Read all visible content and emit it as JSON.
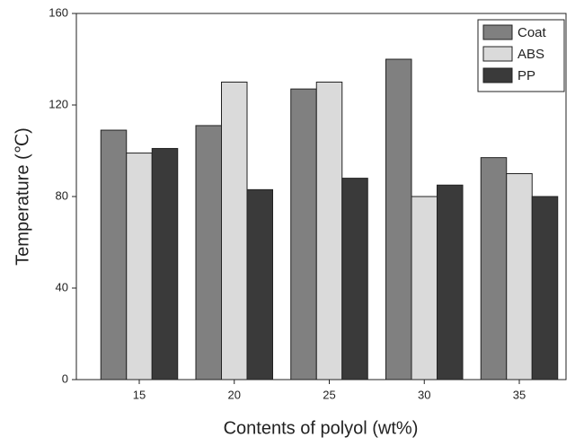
{
  "chart_data": {
    "type": "bar",
    "xlabel": "Contents of polyol (wt%)",
    "ylabel": "Temperature (℃)",
    "categories": [
      "15",
      "20",
      "25",
      "30",
      "35"
    ],
    "series": [
      {
        "name": "Coat",
        "color": "#808080",
        "values": [
          109,
          111,
          127,
          140,
          97
        ]
      },
      {
        "name": "ABS",
        "color": "#dadada",
        "values": [
          99,
          130,
          130,
          80,
          90
        ]
      },
      {
        "name": "PP",
        "color": "#3a3a3a",
        "values": [
          101,
          83,
          88,
          85,
          80
        ]
      }
    ],
    "ylim": [
      0,
      160
    ],
    "yticks": [
      0,
      40,
      80,
      120,
      160
    ],
    "legend": "upper right"
  }
}
